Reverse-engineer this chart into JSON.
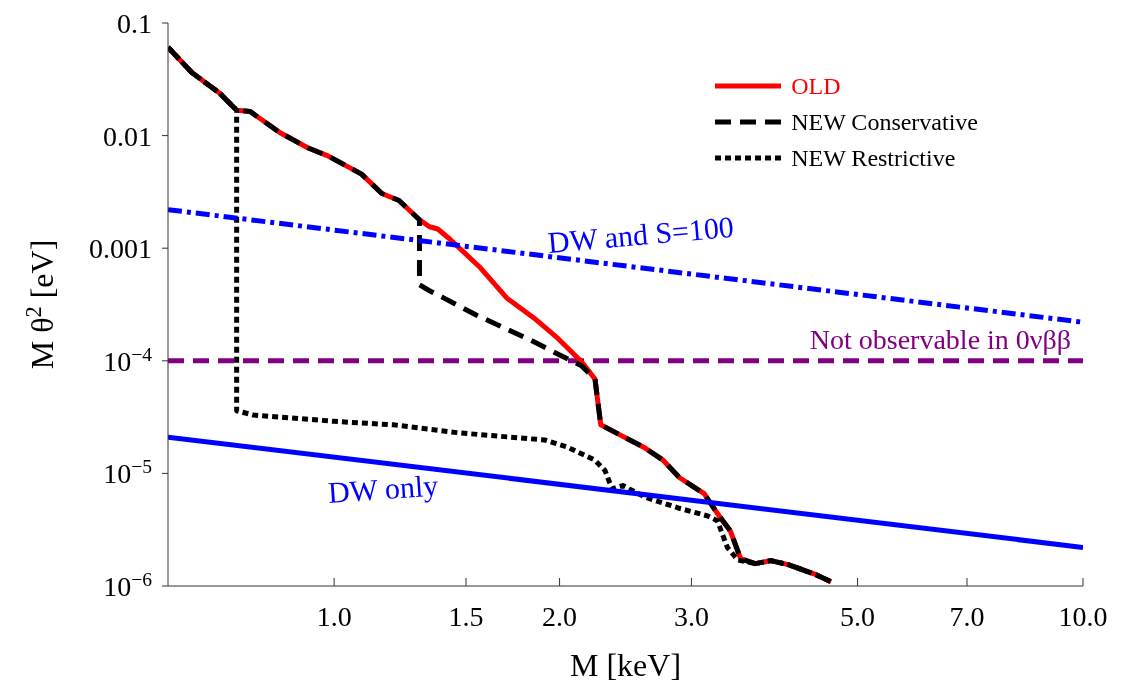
{
  "chart_data": {
    "type": "line",
    "xlabel": "M [keV]",
    "ylabel": "M θ$^{2}$ [eV]",
    "log": "xy",
    "xlim": [
      0.6,
      10
    ],
    "ylim": [
      1e-06,
      0.1
    ],
    "xticks": [
      {
        "value": 1,
        "label": "1.0"
      },
      {
        "value": 1.5,
        "label": "1.5"
      },
      {
        "value": 2,
        "label": "2.0"
      },
      {
        "value": 3,
        "label": "3.0"
      },
      {
        "value": 5,
        "label": "5.0"
      },
      {
        "value": 7,
        "label": "7.0"
      },
      {
        "value": 10,
        "label": "10.0"
      }
    ],
    "yticks": [
      {
        "value": 1e-06,
        "label": "10$^{−6}$"
      },
      {
        "value": 1e-05,
        "label": "10$^{−5}$"
      },
      {
        "value": 0.0001,
        "label": "10$^{−4}$"
      },
      0.001,
      0.01,
      0.1
    ],
    "grid": false,
    "legend": "top right",
    "marker": "none",
    "series": [
      {
        "name": "OLD",
        "color": "#ff0000",
        "line_style": "solid",
        "x": [
          0.6,
          0.646,
          0.703,
          0.741,
          0.772,
          0.847,
          0.922,
          0.981,
          1.088,
          1.158,
          1.221,
          1.3,
          1.341,
          1.375,
          1.428,
          1.568,
          1.7,
          1.85,
          1.99,
          2.14,
          2.23,
          2.27,
          2.38,
          2.59,
          2.75,
          2.89,
          3.12,
          3.25,
          3.38,
          3.49,
          3.65,
          3.83,
          4.04,
          4.4,
          4.61
        ],
        "values": [
          0.0608,
          0.0362,
          0.0239,
          0.0168,
          0.0164,
          0.0106,
          0.0078,
          0.0066,
          0.00455,
          0.00306,
          0.00265,
          0.00179,
          0.00155,
          0.00148,
          0.0012,
          0.00067,
          0.000362,
          0.000239,
          0.000158,
          9.8e-05,
          6.89e-05,
          2.7e-05,
          2.29e-05,
          1.71e-05,
          1.31e-05,
          9.2e-06,
          6.6e-06,
          4.4e-06,
          3.1e-06,
          1.75e-06,
          1.58e-06,
          1.68e-06,
          1.55e-06,
          1.26e-06,
          1.09e-06
        ]
      },
      {
        "name": "NEW Conservative",
        "color": "#000000",
        "line_style": "dashed",
        "x": [
          0.6,
          0.646,
          0.703,
          0.741,
          0.772,
          0.847,
          0.922,
          0.981,
          1.088,
          1.158,
          1.221,
          1.3,
          1.3,
          1.341,
          1.4,
          1.55,
          1.81,
          2.01,
          2.14,
          2.23,
          2.27,
          2.38,
          2.59,
          2.75,
          2.89,
          3.12,
          3.25,
          3.38,
          3.49,
          3.65,
          3.83,
          4.04,
          4.4,
          4.61
        ],
        "values": [
          0.0608,
          0.0362,
          0.0239,
          0.0168,
          0.0164,
          0.0106,
          0.0078,
          0.0066,
          0.00455,
          0.00306,
          0.00265,
          0.00179,
          0.000474,
          0.000419,
          0.000362,
          0.000254,
          0.000158,
          0.000111,
          9.02e-05,
          6.89e-05,
          2.7e-05,
          2.29e-05,
          1.71e-05,
          1.31e-05,
          9.2e-06,
          6.6e-06,
          4.4e-06,
          3.1e-06,
          1.75e-06,
          1.58e-06,
          1.68e-06,
          1.55e-06,
          1.26e-06,
          1.09e-06
        ]
      },
      {
        "name": "NEW Restrictive",
        "color": "#000000",
        "line_style": "dotted",
        "x": [
          0.6,
          0.646,
          0.703,
          0.741,
          0.741,
          0.78,
          1.0,
          1.2,
          1.47,
          1.91,
          2.05,
          2.23,
          2.3,
          2.35,
          2.43,
          2.61,
          2.89,
          3.15,
          3.25,
          3.35,
          3.46,
          3.65,
          3.83,
          4.04,
          4.4,
          4.61
        ],
        "values": [
          0.0608,
          0.0362,
          0.0239,
          0.0168,
          3.6e-05,
          3.3e-05,
          2.9e-05,
          2.7e-05,
          2.29e-05,
          1.98e-05,
          1.71e-05,
          1.31e-05,
          1.06e-05,
          7.3e-06,
          7.8e-06,
          6.1e-06,
          4.9e-06,
          4.2e-06,
          3.8e-06,
          2.2e-06,
          1.7e-06,
          1.58e-06,
          1.68e-06,
          1.55e-06,
          1.26e-06,
          1.09e-06
        ]
      },
      {
        "color": "#0000ff",
        "line_style": "dashdot",
        "x": [
          0.6,
          10
        ],
        "values": [
          0.0022,
          0.00022
        ]
      },
      {
        "color": "#0000ff",
        "line_style": "solid",
        "x": [
          0.6,
          10
        ],
        "values": [
          2.1e-05,
          2.2e-06
        ]
      }
    ],
    "ref_lines": [
      {
        "axis": "y",
        "value": 0.0001,
        "label": "Not observable in 0νββ",
        "color": "#800080",
        "line_style": "dashed"
      }
    ],
    "annotations": [
      "DW and S=100",
      "DW only"
    ]
  }
}
